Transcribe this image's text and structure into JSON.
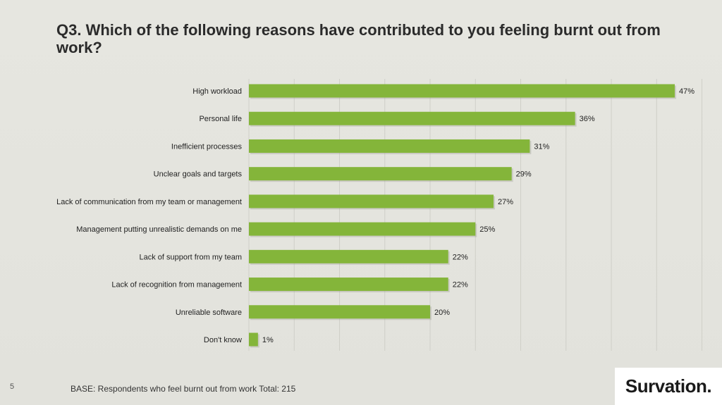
{
  "slide": {
    "title": "Q3. Which of the following reasons have contributed to you feeling burnt out from work?",
    "page_number": "5",
    "base_note": "BASE: Respondents who feel burnt out from work Total: 215",
    "logo_text": "Survation."
  },
  "colors": {
    "bar": "#84b53a",
    "bar_shadow": "#9a9a92",
    "gridline": "#cfcfc8",
    "background": "#e4e4de"
  },
  "chart_data": {
    "type": "bar",
    "orientation": "horizontal",
    "categories": [
      "High workload",
      "Personal life",
      "Inefficient processes",
      "Unclear goals and targets",
      "Lack of communication from my team or management",
      "Management putting unrealistic demands on me",
      "Lack of support from my team",
      "Lack of recognition from management",
      "Unreliable software",
      "Don't know"
    ],
    "values": [
      47,
      36,
      31,
      29,
      27,
      25,
      22,
      22,
      20,
      1
    ],
    "value_labels": [
      "47%",
      "36%",
      "31%",
      "29%",
      "27%",
      "25%",
      "22%",
      "22%",
      "20%",
      "1%"
    ],
    "title": "",
    "xlabel": "",
    "ylabel": "",
    "xlim": [
      0,
      50
    ],
    "grid": true,
    "legend": "none"
  }
}
